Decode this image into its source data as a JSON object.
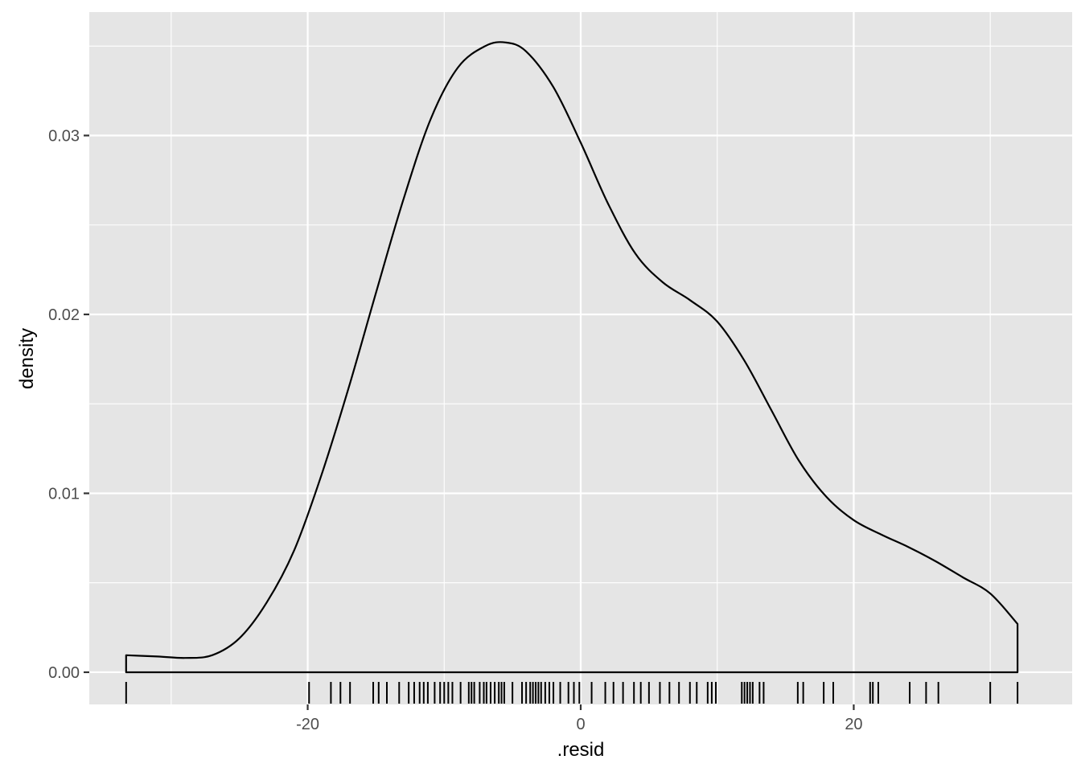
{
  "chart_data": {
    "type": "area",
    "title": "",
    "xlabel": ".resid",
    "ylabel": "density",
    "xlim": [
      -36.0,
      36.0
    ],
    "ylim": [
      -0.0018,
      0.0369
    ],
    "x_ticks": [
      -20,
      0,
      20
    ],
    "x_tick_labels": [
      "-20",
      "0",
      "20"
    ],
    "y_ticks": [
      0.0,
      0.01,
      0.02,
      0.03
    ],
    "y_tick_labels": [
      "0.00",
      "0.01",
      "0.02",
      "0.03"
    ],
    "grid": true,
    "legend": "none",
    "colors": {
      "panel": "#e5e5e5",
      "grid": "#ffffff",
      "line": "#000000",
      "tick_label": "#4d4d4d"
    },
    "series": [
      {
        "x": [
          -33.3,
          -31.0,
          -29.0,
          -27.0,
          -25.0,
          -23.0,
          -21.0,
          -19.0,
          -17.0,
          -15.0,
          -13.0,
          -11.0,
          -9.0,
          -7.0,
          -5.5,
          -4.0,
          -2.0,
          0.0,
          2.0,
          4.0,
          6.0,
          8.0,
          10.0,
          12.0,
          14.0,
          16.0,
          18.0,
          20.0,
          22.0,
          24.0,
          26.0,
          28.0,
          30.0,
          32.0
        ],
        "y": [
          0.00095,
          0.00088,
          0.0008,
          0.00095,
          0.0019,
          0.0039,
          0.0068,
          0.011,
          0.0159,
          0.0212,
          0.0264,
          0.0309,
          0.0338,
          0.035,
          0.0352,
          0.0347,
          0.0327,
          0.0296,
          0.0262,
          0.0234,
          0.0218,
          0.0208,
          0.0196,
          0.0174,
          0.0146,
          0.0118,
          0.0098,
          0.0085,
          0.0077,
          0.007,
          0.0062,
          0.0053,
          0.0044,
          0.0027
        ]
      }
    ],
    "rug": [
      -33.3,
      -19.9,
      -18.3,
      -17.6,
      -16.9,
      -15.2,
      -14.8,
      -14.2,
      -13.3,
      -12.6,
      -12.2,
      -11.8,
      -11.5,
      -11.2,
      -10.7,
      -10.3,
      -10.0,
      -9.7,
      -9.4,
      -8.8,
      -8.2,
      -8.0,
      -7.8,
      -7.4,
      -7.1,
      -6.9,
      -6.6,
      -6.3,
      -6.0,
      -5.8,
      -5.6,
      -5.0,
      -4.3,
      -4.0,
      -3.7,
      -3.5,
      -3.3,
      -3.1,
      -2.9,
      -2.6,
      -2.3,
      -2.0,
      -1.5,
      -0.9,
      -0.5,
      -0.1,
      0.8,
      1.8,
      2.4,
      3.1,
      3.9,
      4.4,
      5.0,
      5.8,
      6.5,
      7.2,
      8.0,
      8.5,
      9.3,
      9.6,
      9.9,
      11.8,
      12.0,
      12.2,
      12.4,
      12.6,
      13.1,
      13.4,
      15.9,
      16.3,
      17.8,
      18.5,
      21.2,
      21.4,
      21.8,
      24.1,
      25.3,
      26.2,
      30.0,
      32.0
    ]
  }
}
